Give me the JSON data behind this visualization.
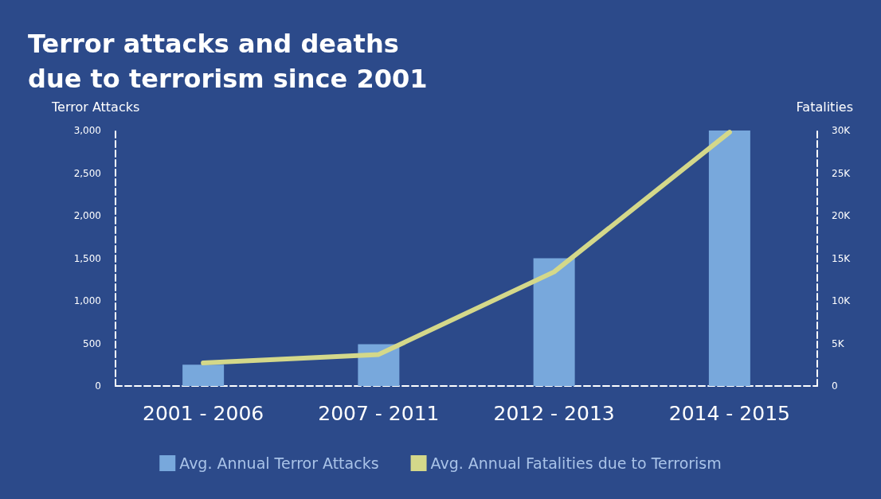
{
  "chart_data": {
    "type": "bar",
    "title": "Terror attacks and deaths\ndue to terrorism since 2001",
    "categories": [
      "2001 - 2006",
      "2007 - 2011",
      "2012 - 2013",
      "2014 - 2015"
    ],
    "series": [
      {
        "name": "Avg. Annual Terror Attacks",
        "color": "#78a8dc",
        "values": [
          250,
          490,
          1500,
          3000
        ]
      },
      {
        "name": "Avg. Annual Fatalities due to Terrorism",
        "type": "line",
        "axis": "y2",
        "color": "#d4d88a",
        "values": [
          2700,
          3700,
          13400,
          29800
        ]
      }
    ],
    "ylabel": "Terror Attacks",
    "y2label": "Fatalities",
    "ylim": [
      0,
      3000
    ],
    "yticks": [
      0,
      500,
      {
        "value": 1000,
        "label": "1,000"
      },
      {
        "value": 1500,
        "label": "1,500"
      },
      {
        "value": 2000,
        "label": "2,000"
      },
      {
        "value": 2500,
        "label": "2,500"
      },
      {
        "value": 3000,
        "label": "3,000"
      }
    ],
    "y2lim": [
      0,
      30000
    ],
    "y2ticks": [
      0,
      {
        "value": 5000,
        "label": "5K"
      },
      {
        "value": 10000,
        "label": "10K"
      },
      {
        "value": 15000,
        "label": "15K"
      },
      {
        "value": 20000,
        "label": "20K"
      },
      {
        "value": 25000,
        "label": "25K"
      },
      {
        "value": 30000,
        "label": "30K"
      }
    ],
    "grid": false,
    "legend": "bottom",
    "marker": "none",
    "line_style": "solid"
  }
}
